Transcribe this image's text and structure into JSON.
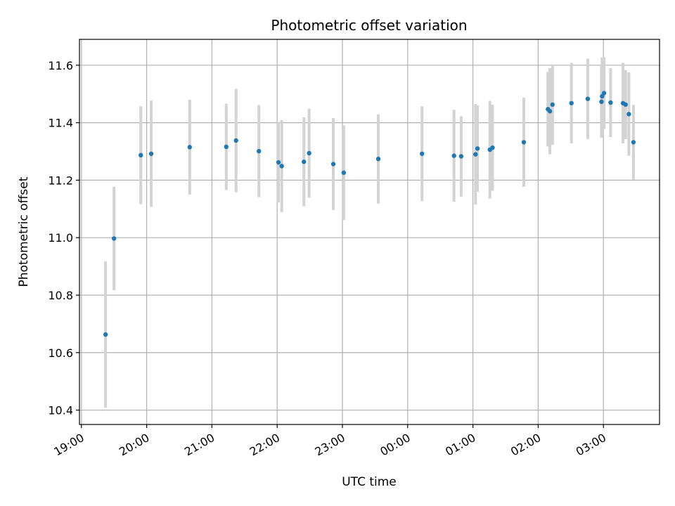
{
  "chart_data": {
    "type": "scatter",
    "title": "Photometric offset variation",
    "xlabel": "UTC time",
    "ylabel": "Photometric offset",
    "grid": true,
    "x_unit": "UTC time of night, hours (values >= 24 are after midnight)",
    "xlim": [
      18.97,
      27.86
    ],
    "ylim": [
      10.35,
      11.69
    ],
    "x_ticks": [
      {
        "value": 19,
        "label": "19:00"
      },
      {
        "value": 20,
        "label": "20:00"
      },
      {
        "value": 21,
        "label": "21:00"
      },
      {
        "value": 22,
        "label": "22:00"
      },
      {
        "value": 23,
        "label": "23:00"
      },
      {
        "value": 24,
        "label": "00:00"
      },
      {
        "value": 25,
        "label": "01:00"
      },
      {
        "value": 26,
        "label": "02:00"
      },
      {
        "value": 27,
        "label": "03:00"
      }
    ],
    "y_ticks": [
      {
        "value": 10.4,
        "label": "10.4"
      },
      {
        "value": 10.6,
        "label": "10.6"
      },
      {
        "value": 10.8,
        "label": "10.8"
      },
      {
        "value": 11.0,
        "label": "11.0"
      },
      {
        "value": 11.2,
        "label": "11.2"
      },
      {
        "value": 11.4,
        "label": "11.4"
      },
      {
        "value": 11.6,
        "label": "11.6"
      }
    ],
    "colors": {
      "point": "#1f77b4",
      "errorbar": "#d3d3d3",
      "grid": "#b0b0b0",
      "axis": "#000000"
    },
    "points": [
      {
        "x": 19.37,
        "y": 10.663,
        "err": 0.255
      },
      {
        "x": 19.5,
        "y": 10.997,
        "err": 0.18
      },
      {
        "x": 19.91,
        "y": 11.287,
        "err": 0.17
      },
      {
        "x": 20.07,
        "y": 11.292,
        "err": 0.185
      },
      {
        "x": 20.66,
        "y": 11.315,
        "err": 0.165
      },
      {
        "x": 21.22,
        "y": 11.316,
        "err": 0.15
      },
      {
        "x": 21.37,
        "y": 11.338,
        "err": 0.18
      },
      {
        "x": 21.72,
        "y": 11.301,
        "err": 0.16
      },
      {
        "x": 22.02,
        "y": 11.262,
        "err": 0.14
      },
      {
        "x": 22.07,
        "y": 11.249,
        "err": 0.16
      },
      {
        "x": 22.41,
        "y": 11.264,
        "err": 0.155
      },
      {
        "x": 22.49,
        "y": 11.294,
        "err": 0.155
      },
      {
        "x": 22.86,
        "y": 11.256,
        "err": 0.16
      },
      {
        "x": 23.02,
        "y": 11.226,
        "err": 0.165
      },
      {
        "x": 23.55,
        "y": 11.274,
        "err": 0.155
      },
      {
        "x": 24.22,
        "y": 11.292,
        "err": 0.165
      },
      {
        "x": 24.71,
        "y": 11.285,
        "err": 0.16
      },
      {
        "x": 24.82,
        "y": 11.283,
        "err": 0.14
      },
      {
        "x": 25.04,
        "y": 11.29,
        "err": 0.175
      },
      {
        "x": 25.07,
        "y": 11.31,
        "err": 0.15
      },
      {
        "x": 25.26,
        "y": 11.306,
        "err": 0.17
      },
      {
        "x": 25.3,
        "y": 11.313,
        "err": 0.15
      },
      {
        "x": 25.78,
        "y": 11.332,
        "err": 0.155
      },
      {
        "x": 26.15,
        "y": 11.447,
        "err": 0.13
      },
      {
        "x": 26.18,
        "y": 11.44,
        "err": 0.15
      },
      {
        "x": 26.22,
        "y": 11.463,
        "err": 0.14
      },
      {
        "x": 26.51,
        "y": 11.468,
        "err": 0.14
      },
      {
        "x": 26.76,
        "y": 11.483,
        "err": 0.14
      },
      {
        "x": 26.97,
        "y": 11.473,
        "err": 0.125
      },
      {
        "x": 26.98,
        "y": 11.492,
        "err": 0.135
      },
      {
        "x": 27.01,
        "y": 11.503,
        "err": 0.125
      },
      {
        "x": 27.11,
        "y": 11.47,
        "err": 0.12
      },
      {
        "x": 27.3,
        "y": 11.468,
        "err": 0.14
      },
      {
        "x": 27.34,
        "y": 11.463,
        "err": 0.12
      },
      {
        "x": 27.39,
        "y": 11.43,
        "err": 0.145
      },
      {
        "x": 27.46,
        "y": 11.332,
        "err": 0.13
      }
    ]
  }
}
